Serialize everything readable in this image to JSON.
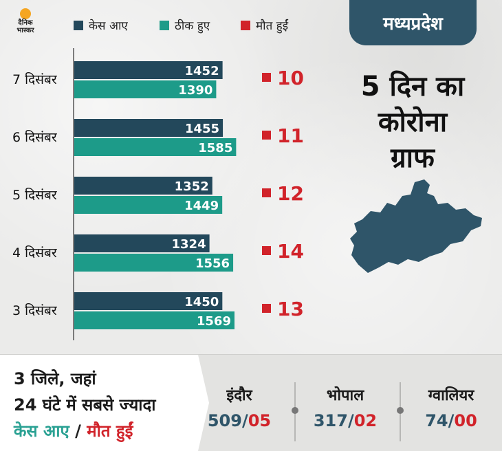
{
  "brand": {
    "logo_text": "दैनिक भास्कर"
  },
  "legend": [
    {
      "label": "केस आए",
      "color": "#23485b"
    },
    {
      "label": "ठीक हुए",
      "color": "#1d9b89"
    },
    {
      "label": "मौत हुईं",
      "color": "#d1232a"
    }
  ],
  "state_label": "मध्यप्रदेश",
  "graph_title_lines": [
    "5 दिन का",
    "कोरोना",
    "ग्राफ"
  ],
  "chart_data": {
    "type": "bar",
    "orientation": "horizontal",
    "categories": [
      "7 दिसंबर",
      "6 दिसंबर",
      "5 दिसंबर",
      "4 दिसंबर",
      "3 दिसंबर"
    ],
    "series": [
      {
        "name": "केस आए",
        "values": [
          1452,
          1455,
          1352,
          1324,
          1450
        ],
        "color": "#23485b"
      },
      {
        "name": "ठीक हुए",
        "values": [
          1390,
          1585,
          1449,
          1556,
          1569
        ],
        "color": "#1d9b89"
      },
      {
        "name": "मौत हुईं",
        "values": [
          10,
          11,
          12,
          14,
          13
        ],
        "color": "#d1232a"
      }
    ]
  },
  "summary": {
    "headline_lines": [
      "3 जिले, जहां",
      "24 घंटे में सबसे ज्यादा"
    ],
    "headline_cases": "केस आए",
    "headline_sep": " / ",
    "headline_deaths": "मौत हुईं",
    "cities": [
      {
        "name": "इंदौर",
        "cases": "509",
        "deaths": "05"
      },
      {
        "name": "भोपाल",
        "cases": "317",
        "deaths": "02"
      },
      {
        "name": "ग्वालियर",
        "cases": "74",
        "deaths": "00"
      }
    ],
    "slash": "/"
  }
}
